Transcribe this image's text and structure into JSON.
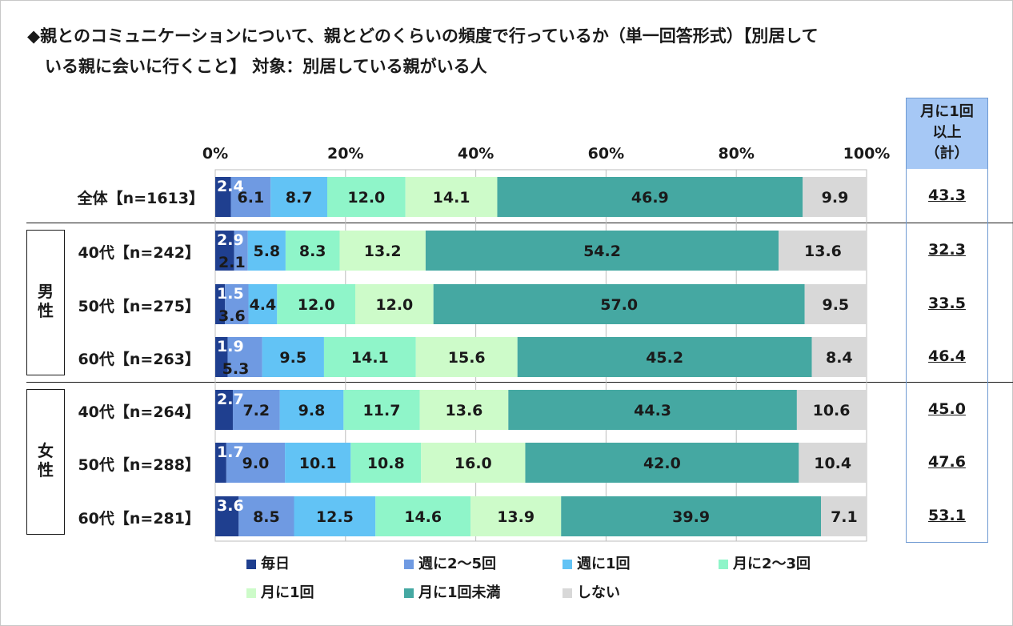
{
  "title": {
    "line1": "◆親とのコミュニケーションについて、親とどのくらいの頻度で行っているか（単一回答形式）【別居して",
    "line2": "いる親に会いに行くこと】 対象：別居している親がいる人"
  },
  "summary": {
    "header": [
      "月に1回",
      "以上",
      "（計）"
    ],
    "values": [
      "43.3",
      "32.3",
      "33.5",
      "46.4",
      "45.0",
      "47.6",
      "53.1"
    ]
  },
  "groups": [
    {
      "label": [
        "男",
        "性"
      ]
    },
    {
      "label": [
        "女",
        "性"
      ]
    }
  ],
  "row_labels": [
    "全体【n=1613】",
    "40代【n=242】",
    "50代【n=275】",
    "60代【n=263】",
    "40代【n=264】",
    "50代【n=288】",
    "60代【n=281】"
  ],
  "legend": [
    {
      "label": "毎日",
      "color": "#1f3f8f"
    },
    {
      "label": "週に2～5回",
      "color": "#6f9ae2"
    },
    {
      "label": "週に1回",
      "color": "#62c3f5"
    },
    {
      "label": "月に2～3回",
      "color": "#8ff5c9"
    },
    {
      "label": "月に1回",
      "color": "#cdfbc9"
    },
    {
      "label": "月に1回未満",
      "color": "#45a8a2"
    },
    {
      "label": "しない",
      "color": "#d8d8d8"
    }
  ],
  "chart_data": {
    "type": "bar",
    "orientation": "horizontal-stacked-100",
    "x_ticks": [
      "0%",
      "20%",
      "40%",
      "60%",
      "80%",
      "100%"
    ],
    "xlim": [
      0,
      100
    ],
    "categories": [
      "全体【n=1613】",
      "40代【n=242】",
      "50代【n=275】",
      "60代【n=263】",
      "40代【n=264】",
      "50代【n=288】",
      "60代【n=281】"
    ],
    "series": [
      {
        "name": "毎日",
        "values": [
          2.4,
          2.9,
          1.5,
          1.9,
          2.7,
          1.7,
          3.6
        ]
      },
      {
        "name": "週に2～5回",
        "values": [
          6.1,
          2.1,
          3.6,
          5.3,
          7.2,
          9.0,
          8.5
        ]
      },
      {
        "name": "週に1回",
        "values": [
          8.7,
          5.8,
          4.4,
          9.5,
          9.8,
          10.1,
          12.5
        ]
      },
      {
        "name": "月に2～3回",
        "values": [
          12.0,
          8.3,
          12.0,
          14.1,
          11.7,
          10.8,
          14.6
        ]
      },
      {
        "name": "月に1回",
        "values": [
          14.1,
          13.2,
          12.0,
          15.6,
          13.6,
          16.0,
          13.9
        ]
      },
      {
        "name": "月に1回未満",
        "values": [
          46.9,
          54.2,
          57.0,
          45.2,
          44.3,
          42.0,
          39.9
        ]
      },
      {
        "name": "しない",
        "values": [
          9.9,
          13.6,
          9.5,
          8.4,
          10.6,
          10.4,
          7.1
        ]
      }
    ],
    "legend_position": "bottom",
    "grid": true
  }
}
